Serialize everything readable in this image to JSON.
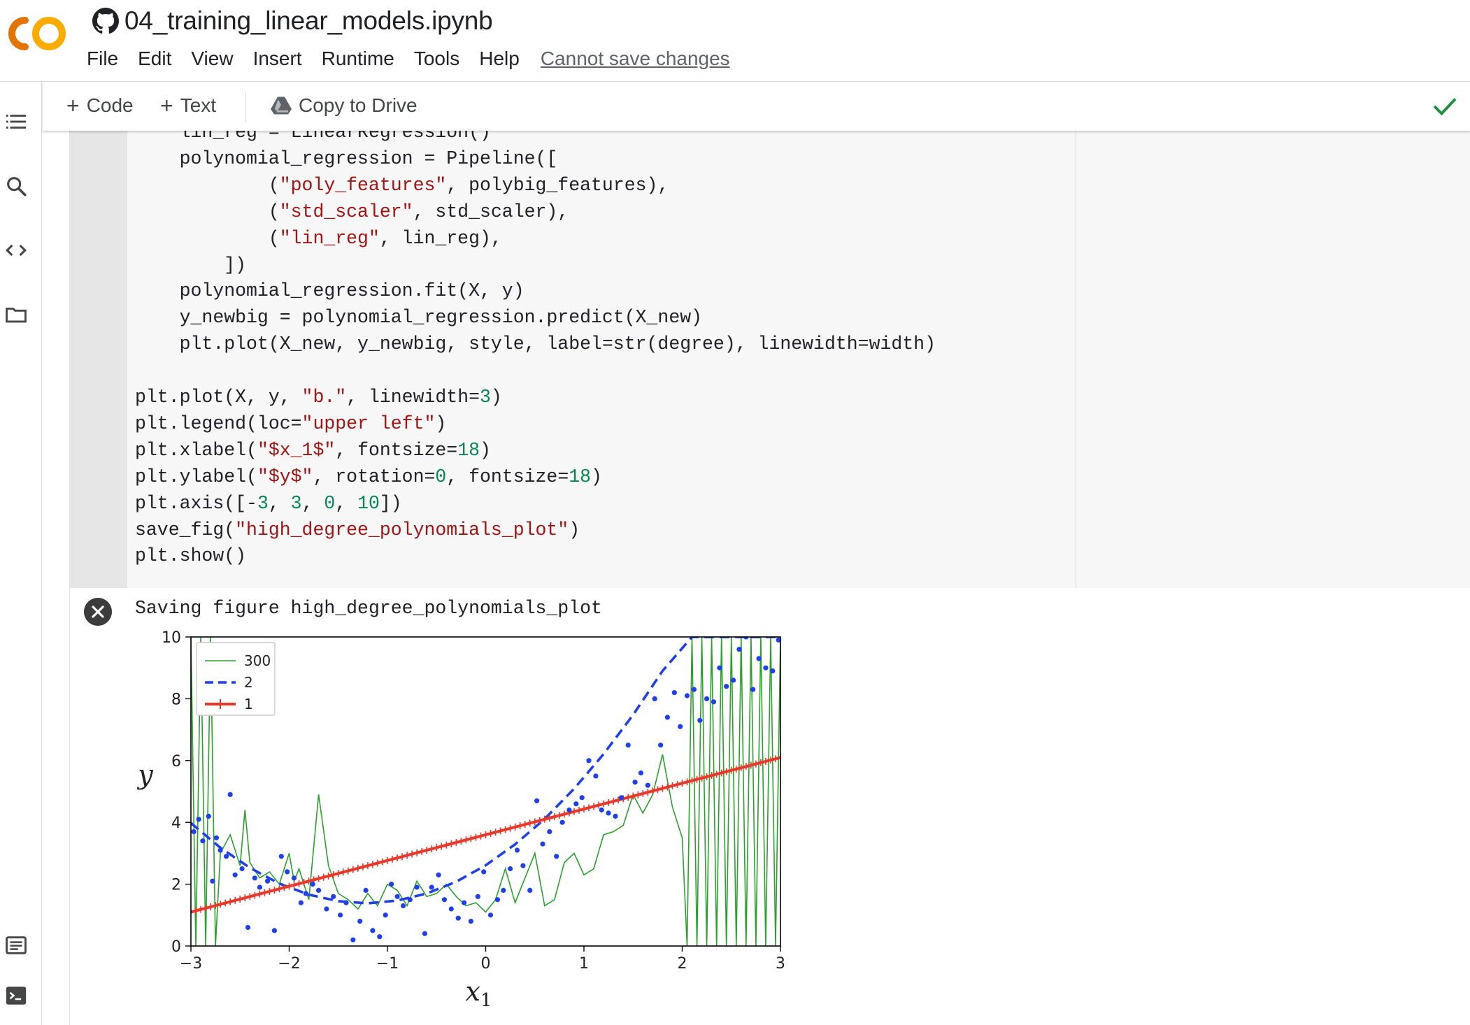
{
  "app": {
    "notebook_title": "04_training_linear_models.ipynb",
    "logo_letters": "CO",
    "colors": {
      "logo_orange": "#f9ab00",
      "logo_dark_orange": "#e37400",
      "check_green": "#1e8e3e"
    }
  },
  "menu": {
    "items": [
      "File",
      "Edit",
      "View",
      "Insert",
      "Runtime",
      "Tools",
      "Help"
    ],
    "cannot_save": "Cannot save changes"
  },
  "toolbar": {
    "code_label": "Code",
    "text_label": "Text",
    "copy_drive_label": "Copy to Drive"
  },
  "rail_icons": [
    "table-of-contents-icon",
    "search-icon",
    "code-snippets-icon",
    "files-icon",
    "command-palette-icon",
    "terminal-icon"
  ],
  "code_lines": [
    [
      {
        "t": "    lin_reg = LinearRegression()"
      }
    ],
    [
      {
        "t": "    polynomial_regression = Pipeline(["
      }
    ],
    [
      {
        "t": "            ("
      },
      {
        "t": "\"poly_features\"",
        "c": "s"
      },
      {
        "t": ", polybig_features),"
      }
    ],
    [
      {
        "t": "            ("
      },
      {
        "t": "\"std_scaler\"",
        "c": "s"
      },
      {
        "t": ", std_scaler),"
      }
    ],
    [
      {
        "t": "            ("
      },
      {
        "t": "\"lin_reg\"",
        "c": "s"
      },
      {
        "t": ", lin_reg),"
      }
    ],
    [
      {
        "t": "        ])"
      }
    ],
    [
      {
        "t": "    polynomial_regression.fit(X, y)"
      }
    ],
    [
      {
        "t": "    y_newbig = polynomial_regression.predict(X_new)"
      }
    ],
    [
      {
        "t": "    plt.plot(X_new, y_newbig, style, label=str(degree), linewidth=width)"
      }
    ],
    [
      {
        "t": ""
      }
    ],
    [
      {
        "t": "plt.plot(X, y, "
      },
      {
        "t": "\"b.\"",
        "c": "s"
      },
      {
        "t": ", linewidth="
      },
      {
        "t": "3",
        "c": "n"
      },
      {
        "t": ")"
      }
    ],
    [
      {
        "t": "plt.legend(loc="
      },
      {
        "t": "\"upper left\"",
        "c": "s"
      },
      {
        "t": ")"
      }
    ],
    [
      {
        "t": "plt.xlabel("
      },
      {
        "t": "\"$x_1$\"",
        "c": "s"
      },
      {
        "t": ", fontsize="
      },
      {
        "t": "18",
        "c": "n"
      },
      {
        "t": ")"
      }
    ],
    [
      {
        "t": "plt.ylabel("
      },
      {
        "t": "\"$y$\"",
        "c": "s"
      },
      {
        "t": ", rotation="
      },
      {
        "t": "0",
        "c": "n"
      },
      {
        "t": ", fontsize="
      },
      {
        "t": "18",
        "c": "n"
      },
      {
        "t": ")"
      }
    ],
    [
      {
        "t": "plt.axis([-"
      },
      {
        "t": "3",
        "c": "n"
      },
      {
        "t": ", "
      },
      {
        "t": "3",
        "c": "n"
      },
      {
        "t": ", "
      },
      {
        "t": "0",
        "c": "n"
      },
      {
        "t": ", "
      },
      {
        "t": "10",
        "c": "n"
      },
      {
        "t": "])"
      }
    ],
    [
      {
        "t": "save_fig("
      },
      {
        "t": "\"high_degree_polynomials_plot\"",
        "c": "s"
      },
      {
        "t": ")"
      }
    ],
    [
      {
        "t": "plt.show()"
      }
    ]
  ],
  "output": {
    "saving_text": "Saving figure high_degree_polynomials_plot"
  },
  "chart_data": {
    "type": "line",
    "title": "",
    "xlabel": "x",
    "xlabel_sub": "1",
    "ylabel": "y",
    "xlim": [
      -3,
      3
    ],
    "ylim": [
      0,
      10
    ],
    "xticks": [
      -3,
      -2,
      -1,
      0,
      1,
      2,
      3
    ],
    "xtick_labels": [
      "−3",
      "−2",
      "−1",
      "0",
      "1",
      "2",
      "3"
    ],
    "yticks": [
      0,
      2,
      4,
      6,
      8,
      10
    ],
    "ytick_labels": [
      "0",
      "2",
      "4",
      "6",
      "8",
      "10"
    ],
    "legend_placement": "upper left",
    "series": [
      {
        "name": "300",
        "style": "green-solid-thin",
        "color": "#2ca02c",
        "x": [
          -3.0,
          -2.95,
          -2.9,
          -2.85,
          -2.8,
          -2.75,
          -2.7,
          -2.6,
          -2.5,
          -2.45,
          -2.4,
          -2.3,
          -2.2,
          -2.1,
          -2.0,
          -1.95,
          -1.9,
          -1.8,
          -1.7,
          -1.6,
          -1.5,
          -1.4,
          -1.3,
          -1.2,
          -1.1,
          -1.0,
          -0.9,
          -0.8,
          -0.7,
          -0.6,
          -0.5,
          -0.4,
          -0.3,
          -0.2,
          -0.1,
          0.0,
          0.1,
          0.2,
          0.3,
          0.4,
          0.5,
          0.6,
          0.7,
          0.8,
          0.9,
          1.0,
          1.1,
          1.2,
          1.3,
          1.4,
          1.5,
          1.6,
          1.7,
          1.8,
          1.9,
          2.0,
          2.05,
          2.1,
          2.15,
          2.2,
          2.25,
          2.3,
          2.35,
          2.4,
          2.45,
          2.5,
          2.55,
          2.6,
          2.65,
          2.7,
          2.75,
          2.8,
          2.85,
          2.9,
          2.95,
          3.0
        ],
        "y": [
          10,
          0,
          10,
          0,
          10,
          0,
          3.0,
          3.6,
          2.6,
          4.4,
          2.7,
          2.2,
          2.4,
          2.0,
          3.0,
          2.1,
          2.5,
          1.5,
          4.9,
          2.6,
          1.7,
          1.5,
          1.2,
          1.7,
          1.3,
          2.0,
          1.8,
          1.3,
          2.1,
          1.6,
          1.7,
          2.0,
          1.6,
          1.3,
          1.4,
          1.1,
          1.5,
          2.5,
          1.4,
          2.2,
          3.0,
          1.3,
          1.5,
          2.7,
          3.0,
          2.3,
          2.5,
          3.6,
          3.7,
          3.9,
          4.9,
          4.3,
          4.9,
          6.2,
          4.5,
          3.5,
          0,
          10,
          0,
          10,
          0,
          10,
          0,
          10,
          0,
          10,
          0,
          10,
          0,
          10,
          0,
          10,
          0,
          10,
          0,
          10
        ]
      },
      {
        "name": "2",
        "style": "blue-dashed",
        "color": "#1f3fe8",
        "x": [
          -3.0,
          -2.7,
          -2.4,
          -2.1,
          -1.8,
          -1.5,
          -1.2,
          -0.9,
          -0.6,
          -0.3,
          0.0,
          0.3,
          0.6,
          0.9,
          1.2,
          1.5,
          1.8,
          2.1,
          2.4,
          2.7,
          3.0
        ],
        "y": [
          3.98,
          3.18,
          2.53,
          2.02,
          1.66,
          1.45,
          1.38,
          1.47,
          1.7,
          2.08,
          2.61,
          3.29,
          4.11,
          5.09,
          6.21,
          7.48,
          8.9,
          10.0,
          10.0,
          10.0,
          10.0
        ]
      },
      {
        "name": "1",
        "style": "red-plus-thick",
        "color": "#e8382b",
        "x": [
          -3.0,
          3.0
        ],
        "y": [
          1.1,
          6.1
        ]
      },
      {
        "name": "",
        "style": "blue-dots",
        "color": "#1f3fe8",
        "x": [
          -2.97,
          -2.92,
          -2.88,
          -2.82,
          -2.78,
          -2.74,
          -2.7,
          -2.64,
          -2.6,
          -2.55,
          -2.48,
          -2.42,
          -2.35,
          -2.3,
          -2.22,
          -2.15,
          -2.08,
          -2.02,
          -1.95,
          -1.88,
          -1.83,
          -1.76,
          -1.7,
          -1.62,
          -1.55,
          -1.48,
          -1.42,
          -1.35,
          -1.28,
          -1.22,
          -1.15,
          -1.08,
          -1.02,
          -0.96,
          -0.9,
          -0.84,
          -0.77,
          -0.7,
          -0.62,
          -0.55,
          -0.48,
          -0.42,
          -0.35,
          -0.28,
          -0.22,
          -0.15,
          -0.08,
          -0.02,
          0.05,
          0.12,
          0.18,
          0.25,
          0.32,
          0.38,
          0.45,
          0.52,
          0.58,
          0.65,
          0.72,
          0.78,
          0.85,
          0.92,
          0.98,
          1.05,
          1.12,
          1.18,
          1.25,
          1.32,
          1.38,
          1.45,
          1.52,
          1.58,
          1.65,
          1.72,
          1.78,
          1.85,
          1.92,
          1.98,
          2.05,
          2.12,
          2.18,
          2.25,
          2.32,
          2.38,
          2.45,
          2.52,
          2.58,
          2.65,
          2.72,
          2.78,
          2.85,
          2.92,
          2.98
        ],
        "y": [
          3.7,
          4.1,
          3.4,
          4.2,
          2.1,
          3.5,
          3.1,
          2.9,
          4.9,
          2.3,
          2.5,
          0.6,
          2.2,
          1.9,
          2.1,
          0.5,
          2.9,
          2.4,
          2.2,
          1.4,
          1.7,
          2.0,
          1.8,
          1.2,
          1.6,
          1.0,
          1.4,
          0.2,
          0.8,
          1.8,
          0.5,
          0.3,
          1.0,
          2.0,
          1.6,
          1.3,
          1.5,
          1.9,
          0.4,
          1.9,
          2.3,
          1.5,
          1.2,
          0.9,
          1.4,
          0.8,
          1.6,
          2.4,
          1.0,
          1.5,
          1.8,
          2.5,
          3.1,
          2.6,
          1.8,
          4.7,
          3.3,
          3.7,
          2.9,
          4.0,
          4.4,
          4.6,
          4.8,
          6.0,
          5.5,
          4.4,
          4.3,
          4.2,
          4.8,
          6.5,
          5.3,
          5.6,
          5.2,
          8.0,
          6.5,
          7.4,
          8.2,
          7.1,
          8.1,
          8.3,
          7.3,
          8.0,
          7.9,
          9.0,
          8.4,
          8.6,
          9.6,
          10.0,
          8.3,
          9.3,
          9.0,
          8.9,
          9.9
        ]
      }
    ]
  }
}
